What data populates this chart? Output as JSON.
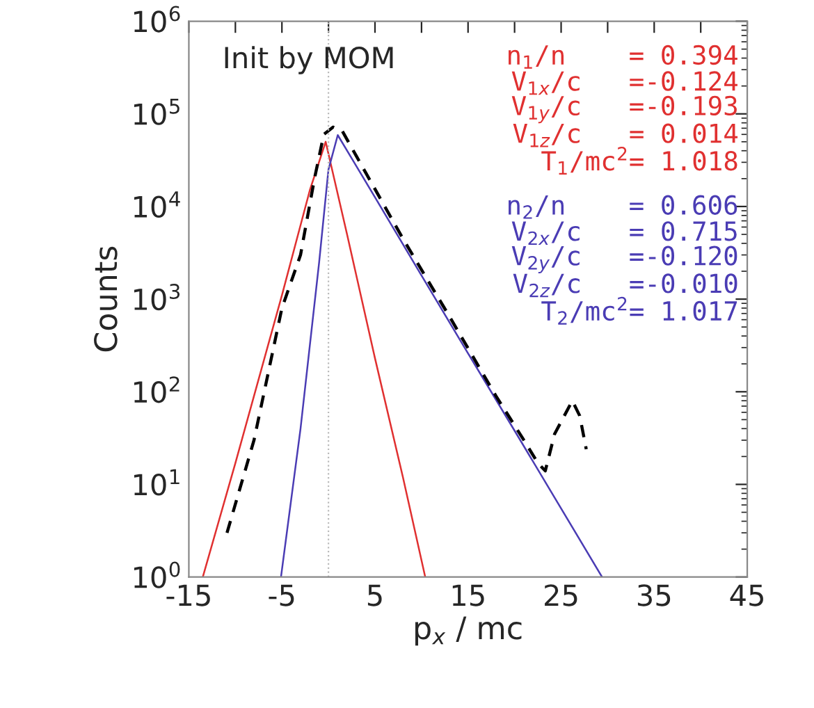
{
  "chart_data": {
    "type": "line",
    "xlabel": "p$_{x}$ / mc",
    "ylabel": "Counts",
    "log": "y",
    "xlim": [
      -15,
      45
    ],
    "xticks": [
      -15,
      {
        "value": -10,
        "label": null
      },
      -5,
      {
        "value": 0,
        "label": null
      },
      5,
      {
        "value": 10,
        "label": null
      },
      15,
      {
        "value": 20,
        "label": null
      },
      25,
      {
        "value": 30,
        "label": null
      },
      35,
      {
        "value": 40,
        "label": null
      },
      45
    ],
    "ylim": [
      1,
      1000000
    ],
    "yticks": [
      {
        "value": 1,
        "label": "10$^{0}$"
      },
      {
        "value": 10,
        "label": "10$^{1}$"
      },
      {
        "value": 100,
        "label": "10$^{2}$"
      },
      {
        "value": 1000,
        "label": "10$^{3}$"
      },
      {
        "value": 10000,
        "label": "10$^{4}$"
      },
      {
        "value": 100000,
        "label": "10$^{5}$"
      },
      {
        "value": 1000000,
        "label": "10$^{6}$"
      }
    ],
    "grid": false,
    "legend": false,
    "series": [
      {
        "color": "#e03030",
        "line_style": "solid",
        "x": [
          -13.5,
          -10,
          -5,
          -2,
          -0.3,
          2,
          5,
          8,
          10.4
        ],
        "values": [
          1,
          17,
          1100,
          15000,
          50000,
          5000,
          230,
          12,
          1
        ]
      },
      {
        "color": "#4a3cb4",
        "line_style": "solid",
        "x": [
          -5.1,
          -3,
          -1,
          0,
          1,
          5,
          10,
          15,
          20,
          25,
          29.4
        ],
        "values": [
          1,
          40,
          2500,
          25000,
          59000,
          12600,
          1800,
          260,
          38,
          5.5,
          1
        ]
      },
      {
        "color": "#000000",
        "line_style": "dashed",
        "x": [
          -10.9,
          -8,
          -5,
          -3,
          -1.5,
          -0.5,
          0.5,
          1.5,
          3,
          8,
          13,
          18,
          21,
          22.5,
          23.3,
          24.3,
          26.2,
          27,
          27.7
        ],
        "values": [
          3,
          30,
          800,
          3000,
          20000,
          60000,
          72000,
          65000,
          35000,
          4500,
          650,
          90,
          30,
          17,
          14,
          35,
          80,
          55,
          24
        ]
      }
    ],
    "ref_lines": [
      {
        "axis": "x",
        "value": 0,
        "color": "#bbbbbb",
        "line_style": "dotted"
      }
    ],
    "annotations": [
      "Init by MOM",
      "n$_{1}$/n    = 0.394",
      "V$_{1x}$/c   =-0.124",
      "V$_{1y}$/c   =-0.193",
      "V$_{1z}$/c   = 0.014",
      "T$_{1}$/mc$^{2}$= 1.018",
      "n$_{2}$/n    = 0.606",
      "V$_{2x}$/c   = 0.715",
      "V$_{2y}$/c   =-0.120",
      "V$_{2z}$/c   =-0.010",
      "T$_{2}$/mc$^{2}$= 1.017"
    ]
  }
}
